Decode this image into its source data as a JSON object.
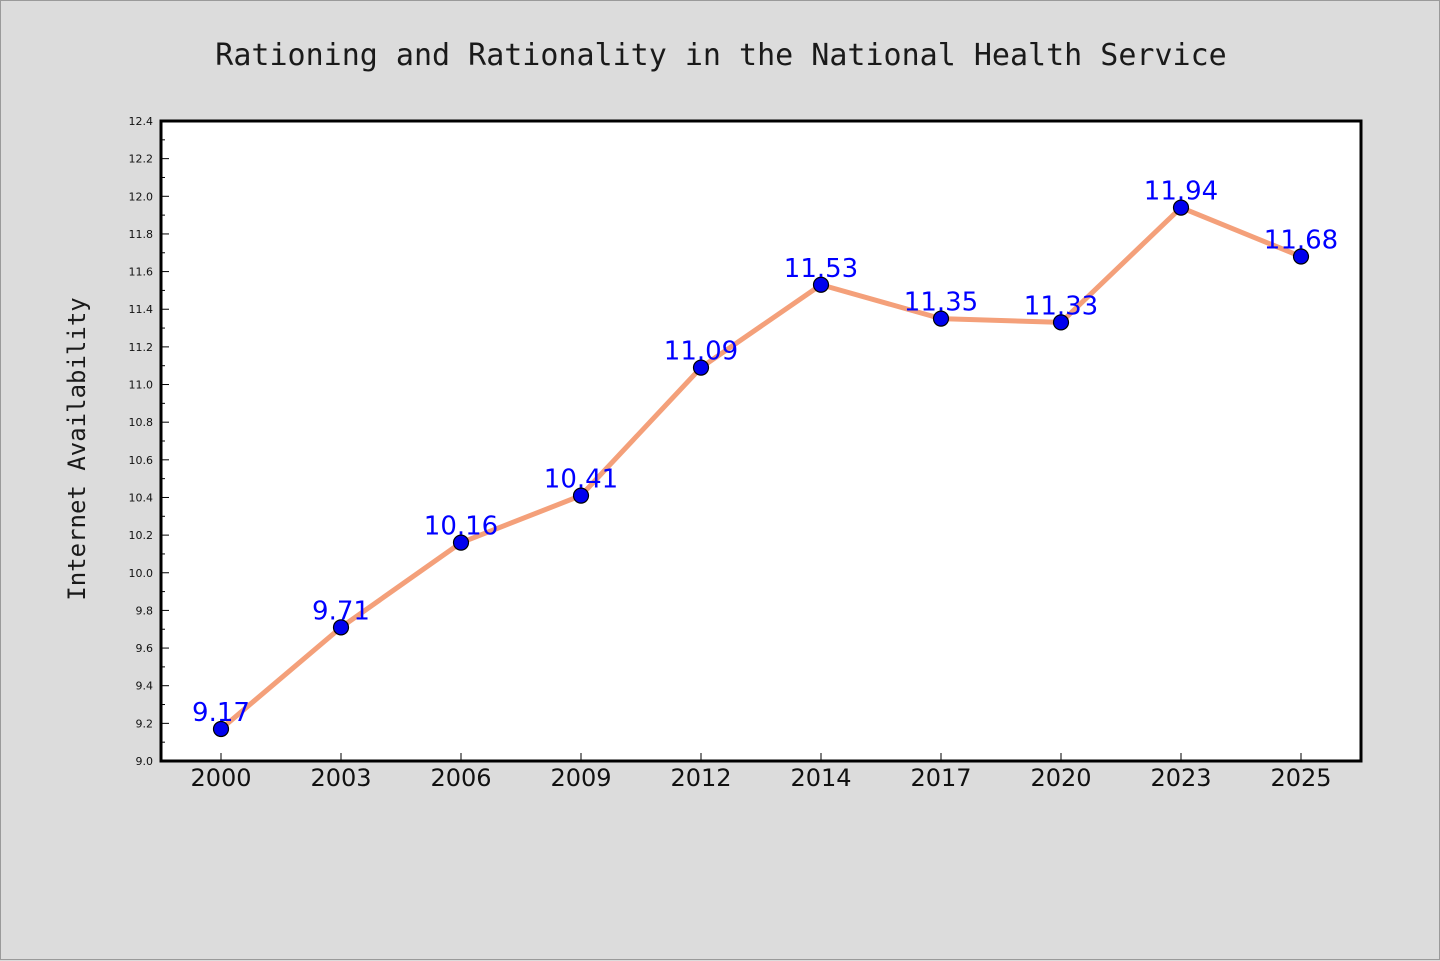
{
  "chart_data": {
    "type": "line",
    "title": "Rationing and Rationality in the National Health Service",
    "xlabel": "",
    "ylabel": "Internet Availability",
    "categories": [
      "2000",
      "2003",
      "2006",
      "2009",
      "2012",
      "2014",
      "2017",
      "2020",
      "2023",
      "2025"
    ],
    "series": [
      {
        "values": [
          9.17,
          9.71,
          10.16,
          10.41,
          11.09,
          11.53,
          11.35,
          11.33,
          11.94,
          11.68
        ],
        "labels": [
          "9.17",
          "9.71",
          "10.16",
          "10.41",
          "11.09",
          "11.53",
          "11.35",
          "11.33",
          "11.94",
          "11.68"
        ],
        "line_color": "#f4a07a",
        "marker_color": "#0000ee"
      }
    ],
    "ylim": [
      9.0,
      12.4
    ],
    "yticks": [
      "9.0",
      "9.2",
      "9.4",
      "9.6",
      "9.8",
      "10.0",
      "10.2",
      "10.4",
      "10.6",
      "10.8",
      "11.0",
      "11.2",
      "11.4",
      "11.6",
      "11.8",
      "12.0",
      "12.2",
      "12.4"
    ],
    "grid": false,
    "legend": "none",
    "label_color": "#0000ff",
    "background_color": "#dcdcdc",
    "plot_background_color": "#ffffff"
  }
}
